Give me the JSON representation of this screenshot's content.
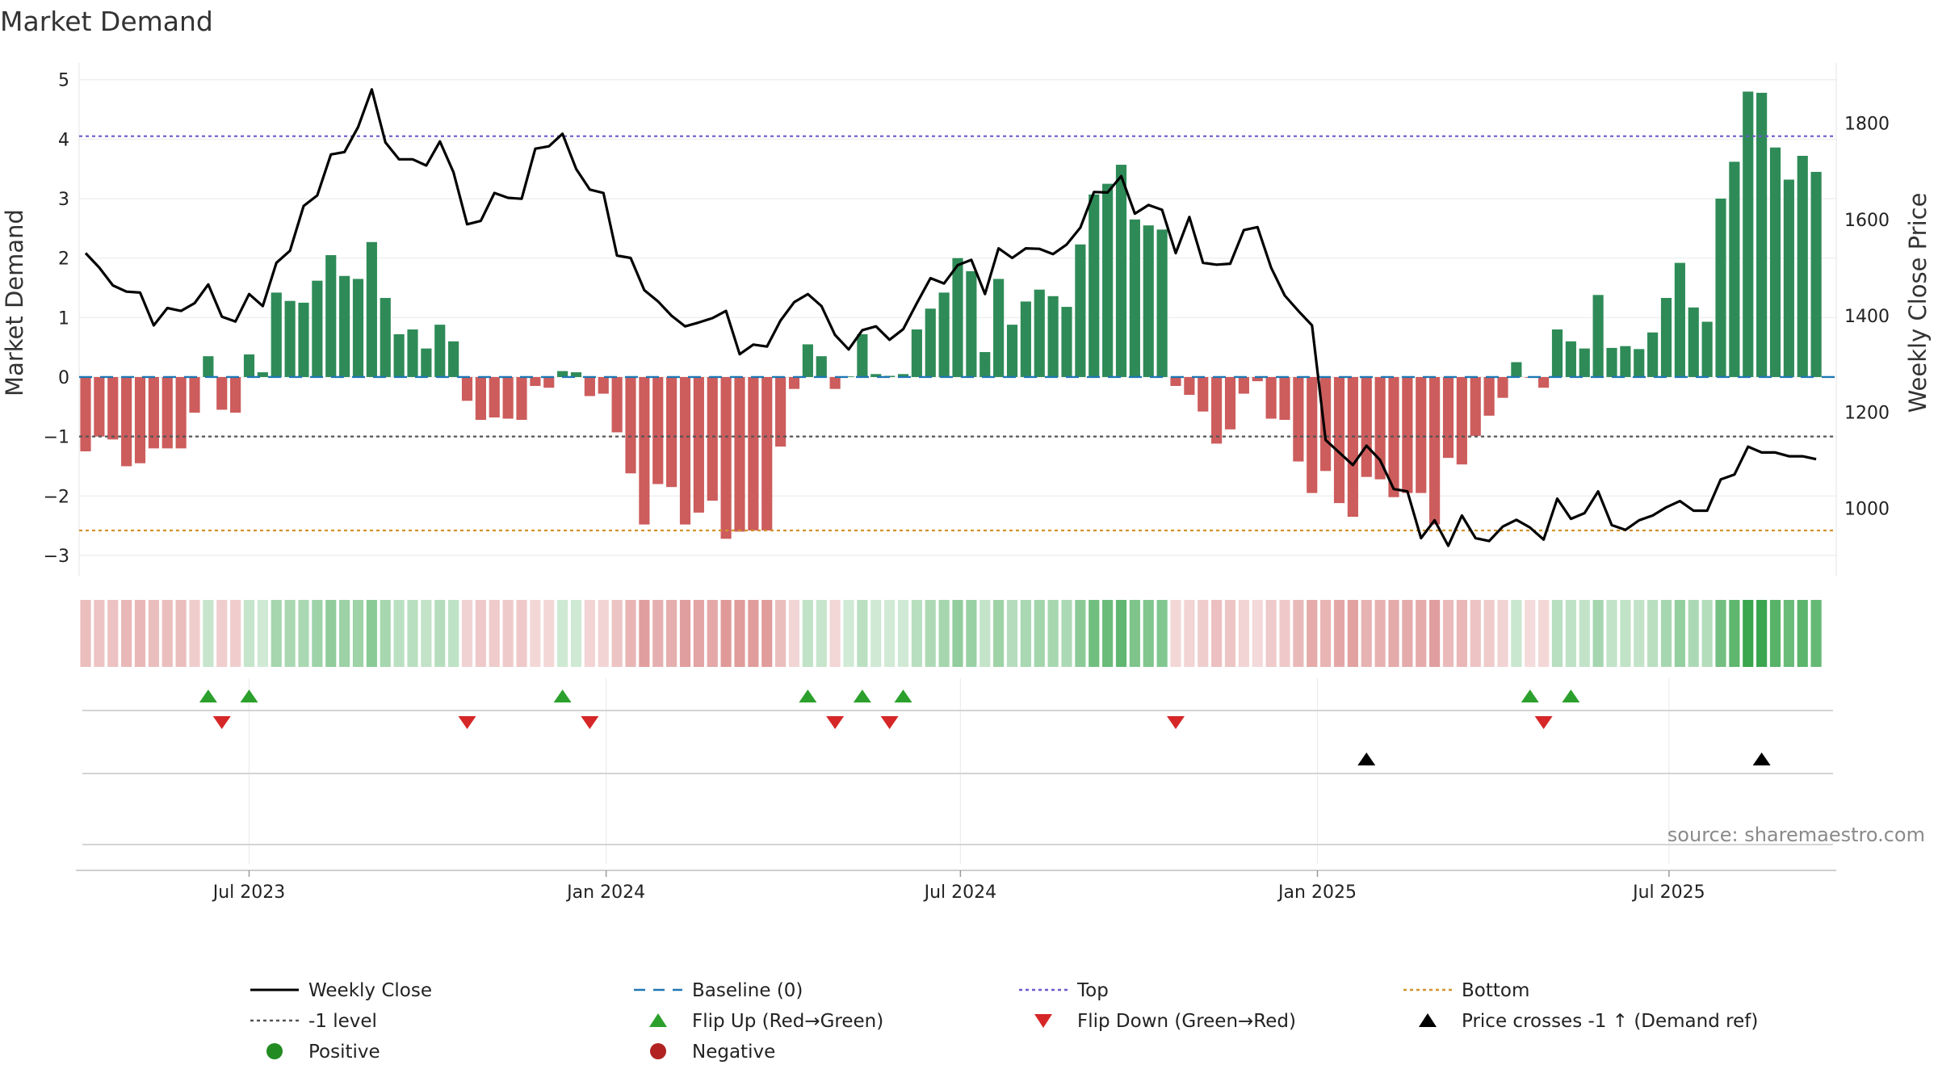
{
  "chart_data": {
    "type": "bar",
    "title": "Market Demand",
    "ylabel_left": "Market Demand",
    "ylabel_right": "Weekly Close Price",
    "source": "source: sharemaestro.com",
    "ylim_left": [
      -3.3,
      5.2
    ],
    "ylim_right": [
      865,
      1915
    ],
    "yticks_left": [
      5,
      4,
      3,
      2,
      1,
      0,
      -1,
      -2,
      -3
    ],
    "ytick_labels_left": [
      "5",
      "4",
      "3",
      "2",
      "1",
      "0",
      "−1",
      "−2",
      "−3"
    ],
    "yticks_right": [
      1800,
      1600,
      1400,
      1200,
      1000
    ],
    "ytick_labels_right": [
      "1800",
      "1600",
      "1400",
      "1200",
      "1000"
    ],
    "x_range_weeks": [
      0,
      128
    ],
    "xticks": [
      {
        "label": "Jul 2023",
        "week": 12
      },
      {
        "label": "Jan 2024",
        "week": 38.2
      },
      {
        "label": "Jul 2024",
        "week": 64.2
      },
      {
        "label": "Jan 2025",
        "week": 90.4
      },
      {
        "label": "Jul 2025",
        "week": 116.2
      }
    ],
    "reference_lines": {
      "baseline": 0,
      "top": 4.05,
      "minus_one": -1,
      "bottom": -2.58
    },
    "colors": {
      "positive_bar": "#2e8b57",
      "negative_bar": "#cd5c5c",
      "price_line": "#000000",
      "baseline": "#1f77b4",
      "top": "#6a5acd",
      "minus_one": "#555555",
      "bottom": "#d2922c",
      "flip_up": "#2ca02c",
      "flip_down": "#d62728",
      "price_cross": "#000000",
      "positive_dot": "#228b22",
      "negative_dot": "#b22222"
    },
    "demand": [
      -1.25,
      -1.0,
      -1.05,
      -1.5,
      -1.45,
      -1.2,
      -1.2,
      -1.2,
      -0.6,
      0.35,
      -0.55,
      -0.6,
      0.38,
      0.08,
      1.42,
      1.28,
      1.25,
      1.62,
      2.05,
      1.7,
      1.65,
      2.27,
      1.33,
      0.72,
      0.8,
      0.48,
      0.88,
      0.6,
      -0.4,
      -0.72,
      -0.68,
      -0.7,
      -0.72,
      -0.15,
      -0.18,
      0.1,
      0.08,
      -0.32,
      -0.28,
      -0.93,
      -1.62,
      -2.48,
      -1.8,
      -1.85,
      -2.48,
      -2.28,
      -2.08,
      -2.72,
      -2.6,
      -2.58,
      -2.58,
      -1.17,
      -0.2,
      0.55,
      0.35,
      -0.2,
      0.01,
      0.72,
      0.05,
      0.02,
      0.05,
      0.8,
      1.15,
      1.42,
      2.0,
      1.78,
      0.42,
      1.65,
      0.88,
      1.27,
      1.47,
      1.36,
      1.18,
      2.23,
      3.07,
      3.25,
      3.57,
      2.65,
      2.55,
      2.48,
      -0.15,
      -0.3,
      -0.58,
      -1.12,
      -0.88,
      -0.28,
      -0.07,
      -0.7,
      -0.72,
      -1.42,
      -1.95,
      -1.58,
      -2.12,
      -2.35,
      -1.68,
      -1.72,
      -2.02,
      -1.95,
      -1.95,
      -2.48,
      -1.36,
      -1.47,
      -0.99,
      -0.65,
      -0.35,
      0.25,
      -0.01,
      -0.18,
      0.8,
      0.6,
      0.48,
      1.38,
      0.49,
      0.52,
      0.47,
      0.75,
      1.33,
      1.92,
      1.17,
      0.93,
      3.0,
      3.62,
      4.8,
      4.78,
      3.86,
      3.32,
      3.72,
      3.45
    ],
    "weekly_close": [
      1530,
      1500,
      1463,
      1450,
      1448,
      1380,
      1416,
      1410,
      1426,
      1465,
      1398,
      1388,
      1445,
      1420,
      1510,
      1535,
      1628,
      1650,
      1735,
      1740,
      1792,
      1870,
      1760,
      1725,
      1725,
      1712,
      1762,
      1698,
      1590,
      1597,
      1655,
      1645,
      1643,
      1747,
      1752,
      1778,
      1705,
      1662,
      1655,
      1525,
      1520,
      1453,
      1430,
      1400,
      1378,
      1386,
      1395,
      1410,
      1320,
      1340,
      1336,
      1390,
      1428,
      1445,
      1420,
      1360,
      1330,
      1370,
      1378,
      1350,
      1372,
      1426,
      1478,
      1467,
      1505,
      1516,
      1445,
      1540,
      1520,
      1540,
      1539,
      1528,
      1548,
      1583,
      1657,
      1656,
      1690,
      1612,
      1630,
      1620,
      1530,
      1605,
      1510,
      1506,
      1508,
      1578,
      1584,
      1500,
      1442,
      1410,
      1380,
      1142,
      1116,
      1090,
      1130,
      1100,
      1040,
      1035,
      938,
      975,
      922,
      985,
      938,
      932,
      962,
      976,
      960,
      935,
      1020,
      978,
      990,
      1035,
      965,
      955,
      975,
      985,
      1002,
      1015,
      995,
      995,
      1060,
      1070,
      1128,
      1116,
      1116,
      1108,
      1108,
      1102
    ],
    "heatmap_strip": "color intensity per week follows demand sign and magnitude",
    "flip_up_weeks": [
      9,
      12,
      35,
      53,
      57,
      60,
      106,
      109
    ],
    "flip_down_weeks": [
      10,
      28,
      37,
      55,
      59,
      80,
      107
    ],
    "price_cross_weeks": [
      94,
      123
    ],
    "legend": [
      {
        "label": "Weekly Close",
        "symbol": "line-solid",
        "color": "#000000"
      },
      {
        "label": "Baseline (0)",
        "symbol": "line-dashed",
        "color": "#1f77b4"
      },
      {
        "label": "Top",
        "symbol": "line-dotted",
        "color": "#6a5acd"
      },
      {
        "label": "Bottom",
        "symbol": "line-dotted",
        "color": "#d2922c"
      },
      {
        "label": "-1 level",
        "symbol": "line-dotted",
        "color": "#555555"
      },
      {
        "label": "Flip Up (Red→Green)",
        "symbol": "triangle-up",
        "color": "#2ca02c"
      },
      {
        "label": "Flip Down (Green→Red)",
        "symbol": "triangle-down",
        "color": "#d62728"
      },
      {
        "label": "Price crosses -1 ↑ (Demand ref)",
        "symbol": "triangle-up",
        "color": "#000000"
      },
      {
        "label": "Positive",
        "symbol": "circle",
        "color": "#228b22"
      },
      {
        "label": "Negative",
        "symbol": "circle",
        "color": "#b22222"
      }
    ]
  }
}
